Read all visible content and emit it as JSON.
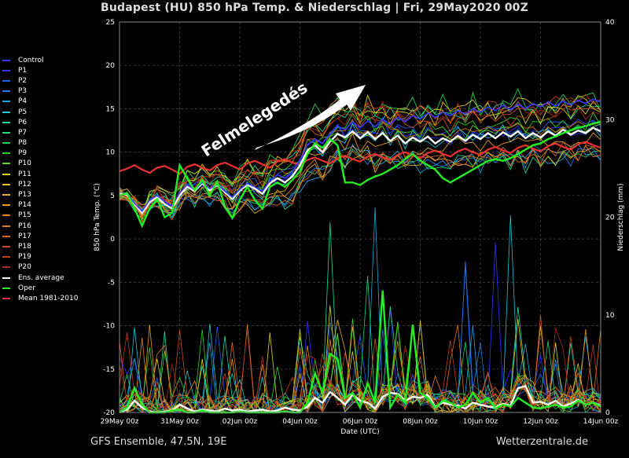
{
  "title": "Budapest  (HU)  850 hPa Temp. & Niederschlag | Fri, 29May2020 00Z",
  "footer_left": "GFS Ensemble, 47.5N, 19E",
  "footer_right": "Wetterzentrale.de",
  "annotation": "Felmelegedés",
  "legend": [
    {
      "label": "Control",
      "color": "#3a3aff"
    },
    {
      "label": "P1",
      "color": "#2f34ff"
    },
    {
      "label": "P2",
      "color": "#1d5cf0"
    },
    {
      "label": "P3",
      "color": "#1a7ce8"
    },
    {
      "label": "P4",
      "color": "#19a6e0"
    },
    {
      "label": "P5",
      "color": "#18c8d8"
    },
    {
      "label": "P6",
      "color": "#1ad8a8"
    },
    {
      "label": "P7",
      "color": "#1cd47a"
    },
    {
      "label": "P8",
      "color": "#1ed046"
    },
    {
      "label": "P9",
      "color": "#2ad21e"
    },
    {
      "label": "P10",
      "color": "#5ad41e"
    },
    {
      "label": "P11",
      "color": "#d8d21e"
    },
    {
      "label": "P12",
      "color": "#e6c21c"
    },
    {
      "label": "P13",
      "color": "#e8ae1c"
    },
    {
      "label": "P14",
      "color": "#e69a1c"
    },
    {
      "label": "P15",
      "color": "#e0861c"
    },
    {
      "label": "P16",
      "color": "#d8741c"
    },
    {
      "label": "P17",
      "color": "#d0621c"
    },
    {
      "label": "P18",
      "color": "#c8501c"
    },
    {
      "label": "P19",
      "color": "#c03e1c"
    },
    {
      "label": "P20",
      "color": "#a82a1c"
    },
    {
      "label": "Ens. average",
      "color": "#ffffff"
    },
    {
      "label": "Oper",
      "color": "#22ee22"
    },
    {
      "label": "Mean 1981-2010",
      "color": "#ee3030"
    }
  ],
  "chart_data": {
    "type": "line",
    "title": "Budapest  (HU)  850 hPa Temp. & Niederschlag | Fri, 29May2020 00Z",
    "xlabel": "Date (UTC)",
    "ylabel": "850 hPa Temp. (°C)",
    "y2label": "Niederschlag (mm)",
    "ylim": [
      -20,
      25
    ],
    "y2lim": [
      0,
      40
    ],
    "yticks": [
      25,
      20,
      15,
      10,
      5,
      0,
      -5,
      -10,
      -15,
      -20
    ],
    "y2ticks": [
      40,
      30,
      20,
      10,
      0
    ],
    "xlim": [
      0,
      384
    ],
    "xtick_hours": [
      0,
      48,
      96,
      144,
      192,
      240,
      288,
      336,
      384
    ],
    "xtick_labels": [
      "29May 00z",
      "31May 00z",
      "02Jun 00z",
      "04Jun 00z",
      "06Jun 00z",
      "08Jun 00z",
      "10Jun 00z",
      "12Jun 00z",
      "14Jun 00z"
    ],
    "step_hours": 6,
    "grid": true,
    "legend_position": "left-outside",
    "temperature_series": [
      {
        "name": "Mean 1981-2010",
        "values": [
          7.8,
          8.1,
          8.5,
          8.0,
          7.6,
          8.2,
          8.4,
          8.0,
          7.5,
          8.3,
          8.6,
          8.2,
          7.9,
          8.5,
          8.8,
          8.4,
          8.0,
          8.7,
          9.0,
          8.6,
          8.2,
          8.9,
          9.2,
          8.8,
          8.5,
          9.1,
          9.4,
          9.0,
          8.7,
          9.3,
          9.6,
          9.2,
          8.9,
          9.5,
          9.8,
          9.4,
          9.1,
          9.7,
          10.0,
          9.6,
          9.3,
          9.9,
          10.2,
          9.8,
          9.5,
          10.1,
          10.4,
          10.0,
          9.7,
          10.3,
          10.6,
          10.2,
          9.9,
          10.5,
          10.8,
          10.4,
          10.1,
          10.7,
          11.0,
          10.6,
          10.3,
          10.9,
          11.2,
          10.8,
          10.5
        ]
      },
      {
        "name": "Ens. average",
        "values": [
          5.2,
          5.1,
          4.0,
          3.0,
          4.2,
          4.8,
          4.0,
          3.5,
          5.0,
          6.0,
          5.5,
          6.4,
          5.6,
          6.2,
          5.4,
          4.6,
          5.6,
          6.2,
          5.8,
          5.2,
          6.4,
          7.0,
          6.5,
          7.2,
          8.5,
          10.2,
          10.8,
          10.0,
          11.2,
          12.1,
          11.7,
          12.4,
          11.6,
          12.3,
          11.5,
          12.2,
          11.3,
          11.9,
          11.0,
          11.7,
          11.2,
          11.8,
          11.0,
          11.6,
          11.2,
          11.9,
          11.3,
          12.0,
          11.5,
          12.2,
          11.6,
          12.3,
          11.8,
          12.4,
          11.6,
          12.2,
          11.7,
          12.4,
          11.9,
          12.6,
          12.0,
          12.5,
          12.2,
          12.8,
          12.4
        ]
      },
      {
        "name": "Control",
        "values": [
          5.0,
          5.2,
          4.1,
          3.2,
          4.5,
          5.0,
          4.3,
          3.8,
          5.3,
          6.3,
          5.6,
          6.5,
          5.8,
          6.3,
          5.5,
          4.8,
          5.7,
          6.4,
          6.0,
          5.5,
          6.7,
          7.4,
          7.0,
          7.8,
          9.0,
          10.8,
          11.5,
          11.0,
          12.1,
          13.0,
          12.6,
          13.5,
          12.8,
          13.6,
          12.9,
          13.8,
          13.2,
          14.0,
          13.5,
          14.2,
          13.8,
          14.5,
          14.0,
          14.6,
          14.2,
          14.8,
          14.4,
          15.0,
          14.6,
          15.2,
          14.8,
          15.4,
          14.9,
          15.5,
          15.0,
          15.6,
          15.2,
          15.8,
          15.3,
          15.9,
          15.4,
          16.0,
          15.6,
          16.1,
          15.8
        ]
      },
      {
        "name": "Oper",
        "values": [
          5.0,
          5.3,
          3.5,
          1.5,
          3.5,
          4.6,
          2.5,
          3.0,
          8.5,
          7.0,
          5.6,
          6.8,
          5.0,
          6.6,
          3.8,
          2.4,
          4.5,
          6.0,
          4.5,
          3.5,
          6.0,
          6.5,
          6.0,
          6.8,
          7.8,
          9.8,
          11.0,
          10.5,
          11.5,
          10.8,
          6.5,
          6.5,
          6.2,
          6.8,
          7.2,
          7.5,
          8.0,
          8.5,
          9.2,
          9.8,
          9.0,
          8.5,
          8.0,
          7.0,
          6.5,
          7.0,
          7.5,
          8.0,
          8.5,
          9.0,
          9.2,
          9.0,
          9.3,
          9.8,
          10.3,
          10.8,
          11.0,
          11.5,
          11.8,
          12.2,
          12.5,
          12.8,
          13.0,
          13.3,
          13.5
        ]
      }
    ],
    "ensemble_temperature_spread": {
      "min_offset": -3.5,
      "max_offset": 4.5,
      "members": 20
    },
    "precip_series": [
      {
        "name": "Ens. average",
        "values": [
          0,
          0.3,
          1.2,
          0.5,
          0.1,
          0,
          0.1,
          0.2,
          0.8,
          0.4,
          0.1,
          0.3,
          0.2,
          0.1,
          0.4,
          0.2,
          0.3,
          0.1,
          0.2,
          0.3,
          0.1,
          0.2,
          0.5,
          0.3,
          0.2,
          0.6,
          1.5,
          1.0,
          2.1,
          1.5,
          0.8,
          1.8,
          1.2,
          1.0,
          0.4,
          1.6,
          2.0,
          1.9,
          1.2,
          1.6,
          1.5,
          1.8,
          0.6,
          1.0,
          0.8,
          0.7,
          0.4,
          1.0,
          0.8,
          0.6,
          0.5,
          0.9,
          0.7,
          2.5,
          2.7,
          1.0,
          1.1,
          0.8,
          1.2,
          0.6,
          0.9,
          1.3,
          0.8,
          1.0,
          0.7
        ]
      },
      {
        "name": "Oper",
        "values": [
          0,
          0.5,
          2.5,
          0.8,
          0,
          0,
          0,
          0.2,
          0.3,
          0,
          0,
          0.2,
          0,
          0,
          0,
          0,
          0.1,
          0,
          0,
          0,
          0,
          0,
          0.1,
          0,
          0,
          1.0,
          4.0,
          2.0,
          6.0,
          5.5,
          1.5,
          2.0,
          0.5,
          3.0,
          1.0,
          12.5,
          0.5,
          1.8,
          1.0,
          9.0,
          2.0,
          1.5,
          0.5,
          1.2,
          1.0,
          0.5,
          0.8,
          2.0,
          1.0,
          1.5,
          0.4,
          0.8,
          0.6,
          1.5,
          1.0,
          0.5,
          0.4,
          0.6,
          0.8,
          0.5,
          0.6,
          1.2,
          0.8,
          1.0,
          0.6
        ]
      }
    ],
    "precip_peaks_mm": [
      17.4,
      15.0,
      15.5,
      21.0,
      20.2,
      19.5,
      14.0
    ]
  }
}
